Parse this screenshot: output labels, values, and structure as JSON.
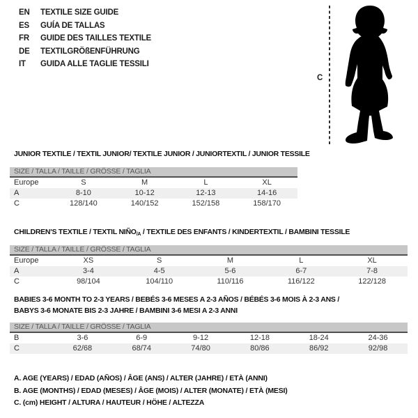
{
  "header": {
    "languages": [
      {
        "code": "EN",
        "text": "TEXTILE SIZE GUIDE"
      },
      {
        "code": "ES",
        "text": "GUÍA DE TALLAS"
      },
      {
        "code": "FR",
        "text": "GUIDE DES TAILLES TEXTILE"
      },
      {
        "code": "DE",
        "text": "TEXTILGRÖßENFÜHRUNG"
      },
      {
        "code": "IT",
        "text": "GUIDA ALLE TAGLIE TESSILI"
      }
    ],
    "figure": {
      "measure_label": "C",
      "silhouette": "toddler-silhouette"
    }
  },
  "size_header": "SIZE / TALLA / TAILLE / GRÖSSE / TAGLIA",
  "tables": [
    {
      "title_segments": [
        {
          "text": "JUNIOR TEXTILE / TEXTIL JUNIOR/ TEXTILE JUNIOR / JUNIORTEXTIL / JUNIOR TESSILE"
        }
      ],
      "rows": [
        {
          "label": "Europe",
          "values": [
            "S",
            "M",
            "L",
            "XL"
          ],
          "shaded": false
        },
        {
          "label": "A",
          "values": [
            "8-10",
            "10-12",
            "12-13",
            "14-16"
          ],
          "shaded": true
        },
        {
          "label": "C",
          "values": [
            "128/140",
            "140/152",
            "152/158",
            "158/170"
          ],
          "shaded": false
        }
      ]
    },
    {
      "title_segments": [
        {
          "text": "CHILDREN'S TEXTILE / TEXTIL NIÑO"
        },
        {
          "text": "/A",
          "sub": true
        },
        {
          "text": " / TEXTILE DES ENFANTS / KINDERTEXTIL / BAMBINI TESSILE"
        }
      ],
      "rows": [
        {
          "label": "Europe",
          "values": [
            "XS",
            "S",
            "M",
            "L",
            "XL"
          ],
          "shaded": false
        },
        {
          "label": "A",
          "values": [
            "3-4",
            "4-5",
            "5-6",
            "6-7",
            "7-8"
          ],
          "shaded": true
        },
        {
          "label": "C",
          "values": [
            "98/104",
            "104/110",
            "110/116",
            "116/122",
            "122/128"
          ],
          "shaded": false
        }
      ]
    },
    {
      "title_segments": [
        {
          "text": "BABIES 3-6 MONTH TO 2-3 YEARS / BEBÉS 3-6 MESES A 2-3 AÑOS / BÉBÉS 3-6 MOIS À 2-3 ANS /"
        },
        {
          "break": true
        },
        {
          "text": "BABYS 3-6 MONATE BIS 2-3 JAHRE / BAMBINI 3-6 MESI A 2-3 ANNI"
        }
      ],
      "rows": [
        {
          "label": "B",
          "values": [
            "3-6",
            "6-9",
            "9-12",
            "12-18",
            "18-24",
            "24-36"
          ],
          "shaded": false
        },
        {
          "label": "C",
          "values": [
            "62/68",
            "68/74",
            "74/80",
            "80/86",
            "86/92",
            "92/98"
          ],
          "shaded": true
        }
      ]
    }
  ],
  "footnotes": [
    "A. AGE (YEARS) / EDAD (AÑOS) / ÂGE (ANS) / ALTER (JAHRE) / ETÀ (ANNI)",
    "B. AGE (MONTHS) / EDAD (MESES) / ÂGE (MOIS) / ALTER (MONATE) / ETÀ (MESI)",
    "C. (cm) HEIGHT / ALTURA / HAUTEUR / HÖHE / ALTEZZA"
  ],
  "colors": {
    "bar_gray": "#c7c7c7",
    "bar_border": "#4f4f4f",
    "shaded_row": "#efefef",
    "silhouette": "#000000"
  }
}
